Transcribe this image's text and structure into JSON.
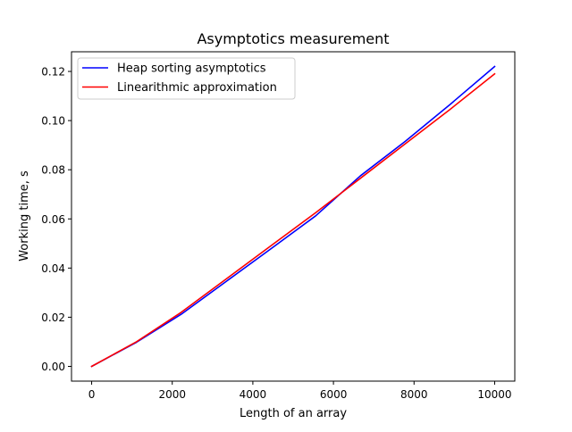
{
  "chart_data": {
    "type": "line",
    "title": "Asymptotics measurement",
    "xlabel": "Length of an array",
    "ylabel": "Working time, s",
    "xlim": [
      -500,
      10500
    ],
    "ylim": [
      -0.006,
      0.128
    ],
    "x_ticks": [
      0,
      2000,
      4000,
      6000,
      8000,
      10000
    ],
    "x_tick_labels": [
      "0",
      "2000",
      "4000",
      "6000",
      "8000",
      "10000"
    ],
    "y_ticks": [
      0.0,
      0.02,
      0.04,
      0.06,
      0.08,
      0.1,
      0.12
    ],
    "y_tick_labels": [
      "0.00",
      "0.02",
      "0.04",
      "0.06",
      "0.08",
      "0.10",
      "0.12"
    ],
    "grid": false,
    "legend_position": "top-left",
    "series": [
      {
        "name": "Heap sorting asymptotics",
        "color": "#0000ff",
        "x": [
          0,
          1111,
          2222,
          3333,
          4444,
          5556,
          6667,
          7778,
          8889,
          10000
        ],
        "y": [
          0.0,
          0.0098,
          0.0212,
          0.0345,
          0.0478,
          0.0612,
          0.0775,
          0.0915,
          0.1065,
          0.122
        ]
      },
      {
        "name": "Linearithmic approximation",
        "color": "#ff0000",
        "x": [
          0,
          1111,
          2222,
          3333,
          4444,
          5556,
          6667,
          7778,
          8889,
          10000
        ],
        "y": [
          0.0,
          0.01,
          0.022,
          0.0355,
          0.049,
          0.0625,
          0.0765,
          0.0905,
          0.1045,
          0.119
        ]
      }
    ]
  }
}
